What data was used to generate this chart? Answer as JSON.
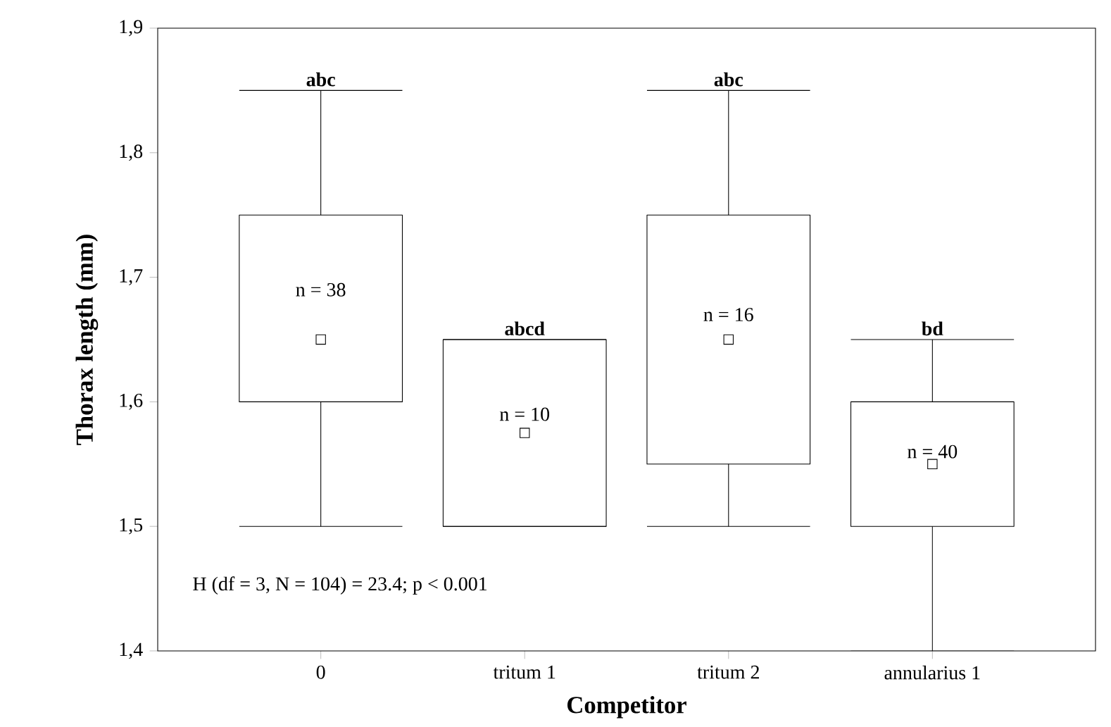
{
  "chart_data": {
    "type": "box",
    "xlabel": "Competitor",
    "ylabel": "Thorax length (mm)",
    "categories": [
      "0",
      "tritum 1",
      "tritum 2",
      "annularius 1"
    ],
    "boxes": [
      {
        "low": 1.5,
        "q1": 1.6,
        "median": 1.65,
        "q3": 1.75,
        "high": 1.85
      },
      {
        "low": 1.5,
        "q1": 1.5,
        "median": 1.575,
        "q3": 1.65,
        "high": 1.65
      },
      {
        "low": 1.5,
        "q1": 1.55,
        "median": 1.65,
        "q3": 1.75,
        "high": 1.85
      },
      {
        "low": 1.4,
        "q1": 1.5,
        "median": 1.55,
        "q3": 1.6,
        "high": 1.65
      }
    ],
    "ylim": [
      1.4,
      1.9
    ],
    "yticks": [
      {
        "value": 1.4,
        "label": "1,4"
      },
      {
        "value": 1.5,
        "label": "1,5"
      },
      {
        "value": 1.6,
        "label": "1,6"
      },
      {
        "value": 1.7,
        "label": "1,7"
      },
      {
        "value": 1.8,
        "label": "1,8"
      },
      {
        "value": 1.9,
        "label": "1,9"
      }
    ],
    "marker": "square",
    "grid": false,
    "annotations": [
      {
        "text": "abc",
        "x": "0",
        "y": 1.85
      },
      {
        "text": "abcd",
        "x": "tritum 1",
        "y": 1.65
      },
      {
        "text": "abc",
        "x": "tritum 2",
        "y": 1.85
      },
      {
        "text": "bd",
        "x": "annularius 1",
        "y": 1.65
      },
      "n = 38",
      "n = 10",
      "n = 16",
      "n = 40",
      "H (df = 3, N = 104) = 23.4; p < 0.001"
    ]
  }
}
